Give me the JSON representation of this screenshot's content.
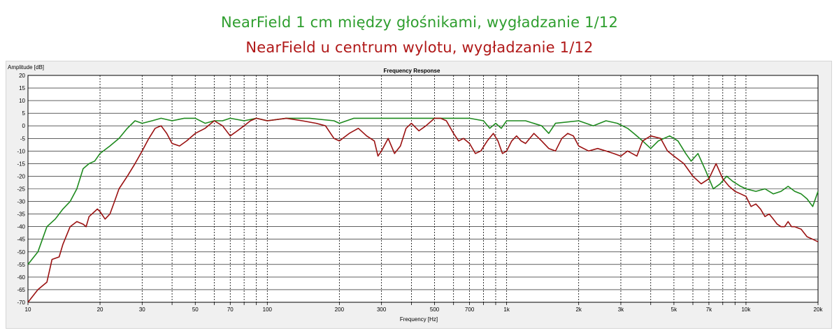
{
  "captions": {
    "green": "NearField 1 cm między głośnikami, wygładzanie 1/12",
    "red": "NearField u centrum wylotu, wygładzanie 1/12",
    "green_color": "#2e9e2e",
    "red_color": "#b01818"
  },
  "chart_data": {
    "type": "line",
    "title": "Frequency Response",
    "xlabel": "Frequency [Hz]",
    "ylabel": "Amplitude [dB]",
    "xscale": "log",
    "xlim": [
      10,
      20000
    ],
    "ylim": [
      -70,
      20
    ],
    "grid": true,
    "x_ticks": [
      {
        "value": 10,
        "label": "10"
      },
      {
        "value": 20,
        "label": "20"
      },
      {
        "value": 30,
        "label": "30"
      },
      {
        "value": 40,
        "label": ""
      },
      {
        "value": 50,
        "label": "50"
      },
      {
        "value": 60,
        "label": ""
      },
      {
        "value": 70,
        "label": "70"
      },
      {
        "value": 80,
        "label": ""
      },
      {
        "value": 90,
        "label": ""
      },
      {
        "value": 100,
        "label": "100"
      },
      {
        "value": 200,
        "label": "200"
      },
      {
        "value": 300,
        "label": "300"
      },
      {
        "value": 400,
        "label": ""
      },
      {
        "value": 500,
        "label": "500"
      },
      {
        "value": 600,
        "label": ""
      },
      {
        "value": 700,
        "label": "700"
      },
      {
        "value": 800,
        "label": ""
      },
      {
        "value": 900,
        "label": ""
      },
      {
        "value": 1000,
        "label": "1k"
      },
      {
        "value": 2000,
        "label": "2k"
      },
      {
        "value": 3000,
        "label": "3k"
      },
      {
        "value": 4000,
        "label": ""
      },
      {
        "value": 5000,
        "label": "5k"
      },
      {
        "value": 6000,
        "label": ""
      },
      {
        "value": 7000,
        "label": "7k"
      },
      {
        "value": 8000,
        "label": ""
      },
      {
        "value": 9000,
        "label": ""
      },
      {
        "value": 10000,
        "label": "10k"
      },
      {
        "value": 20000,
        "label": "20k"
      }
    ],
    "y_ticks": [
      20,
      15,
      10,
      5,
      0,
      -5,
      -10,
      -15,
      -20,
      -25,
      -30,
      -35,
      -40,
      -45,
      -50,
      -55,
      -60,
      -65,
      -70
    ],
    "series": [
      {
        "color": "#1e8a1e",
        "points": [
          [
            10,
            -55
          ],
          [
            11,
            -50
          ],
          [
            12,
            -40
          ],
          [
            13,
            -37
          ],
          [
            14,
            -33
          ],
          [
            15,
            -30
          ],
          [
            16,
            -25
          ],
          [
            17,
            -17
          ],
          [
            18,
            -15
          ],
          [
            19,
            -14
          ],
          [
            20,
            -11
          ],
          [
            22,
            -8
          ],
          [
            24,
            -5
          ],
          [
            26,
            -1
          ],
          [
            28,
            2
          ],
          [
            30,
            1
          ],
          [
            33,
            2
          ],
          [
            36,
            3
          ],
          [
            40,
            2
          ],
          [
            45,
            3
          ],
          [
            50,
            3
          ],
          [
            55,
            1
          ],
          [
            60,
            2
          ],
          [
            65,
            2
          ],
          [
            70,
            3
          ],
          [
            80,
            2
          ],
          [
            90,
            3
          ],
          [
            100,
            2
          ],
          [
            120,
            3
          ],
          [
            150,
            3
          ],
          [
            190,
            2
          ],
          [
            200,
            1
          ],
          [
            230,
            3
          ],
          [
            300,
            3
          ],
          [
            400,
            3
          ],
          [
            500,
            3
          ],
          [
            600,
            3
          ],
          [
            700,
            3
          ],
          [
            800,
            2
          ],
          [
            850,
            -1
          ],
          [
            900,
            1
          ],
          [
            950,
            -1
          ],
          [
            1000,
            2
          ],
          [
            1200,
            2
          ],
          [
            1400,
            0
          ],
          [
            1500,
            -3
          ],
          [
            1600,
            1
          ],
          [
            2000,
            2
          ],
          [
            2300,
            0
          ],
          [
            2600,
            2
          ],
          [
            2900,
            1
          ],
          [
            3200,
            -1
          ],
          [
            3400,
            -3
          ],
          [
            3700,
            -6
          ],
          [
            4000,
            -9
          ],
          [
            4300,
            -6
          ],
          [
            4800,
            -4
          ],
          [
            5200,
            -6
          ],
          [
            5600,
            -11
          ],
          [
            5900,
            -14
          ],
          [
            6300,
            -11
          ],
          [
            6800,
            -18
          ],
          [
            7300,
            -25
          ],
          [
            7800,
            -23
          ],
          [
            8300,
            -20
          ],
          [
            8800,
            -22
          ],
          [
            9500,
            -24
          ],
          [
            10000,
            -25
          ],
          [
            11000,
            -26
          ],
          [
            12000,
            -25
          ],
          [
            13000,
            -27
          ],
          [
            14000,
            -26
          ],
          [
            15000,
            -24
          ],
          [
            16000,
            -26
          ],
          [
            17000,
            -27
          ],
          [
            18000,
            -29
          ],
          [
            19000,
            -32
          ],
          [
            20000,
            -26
          ]
        ]
      },
      {
        "color": "#9a1111",
        "points": [
          [
            10,
            -70
          ],
          [
            11,
            -65
          ],
          [
            12,
            -62
          ],
          [
            12.6,
            -53
          ],
          [
            13.5,
            -52
          ],
          [
            14,
            -47
          ],
          [
            15,
            -40
          ],
          [
            16,
            -38
          ],
          [
            17,
            -39
          ],
          [
            17.5,
            -40
          ],
          [
            18,
            -36
          ],
          [
            19,
            -34
          ],
          [
            19.5,
            -33
          ],
          [
            20,
            -34
          ],
          [
            21,
            -37
          ],
          [
            22,
            -35
          ],
          [
            23,
            -30
          ],
          [
            24,
            -25
          ],
          [
            26,
            -20
          ],
          [
            28,
            -15
          ],
          [
            30,
            -10
          ],
          [
            32,
            -5
          ],
          [
            34,
            -1
          ],
          [
            36,
            0
          ],
          [
            38,
            -3
          ],
          [
            40,
            -7
          ],
          [
            43,
            -8
          ],
          [
            46,
            -6
          ],
          [
            50,
            -3
          ],
          [
            55,
            -1
          ],
          [
            60,
            2
          ],
          [
            65,
            0
          ],
          [
            70,
            -4
          ],
          [
            75,
            -2
          ],
          [
            80,
            0
          ],
          [
            85,
            2
          ],
          [
            90,
            3
          ],
          [
            100,
            2
          ],
          [
            120,
            3
          ],
          [
            140,
            2
          ],
          [
            160,
            1
          ],
          [
            175,
            0
          ],
          [
            190,
            -5
          ],
          [
            200,
            -6
          ],
          [
            220,
            -3
          ],
          [
            240,
            -1
          ],
          [
            260,
            -4
          ],
          [
            280,
            -6
          ],
          [
            290,
            -12
          ],
          [
            300,
            -10
          ],
          [
            320,
            -5
          ],
          [
            340,
            -11
          ],
          [
            360,
            -8
          ],
          [
            380,
            -1
          ],
          [
            400,
            1
          ],
          [
            430,
            -2
          ],
          [
            460,
            0
          ],
          [
            500,
            3
          ],
          [
            530,
            3
          ],
          [
            560,
            2
          ],
          [
            600,
            -3
          ],
          [
            630,
            -6
          ],
          [
            660,
            -5
          ],
          [
            700,
            -7
          ],
          [
            740,
            -11
          ],
          [
            780,
            -10
          ],
          [
            830,
            -6
          ],
          [
            880,
            -3
          ],
          [
            920,
            -6
          ],
          [
            960,
            -11
          ],
          [
            1000,
            -10
          ],
          [
            1050,
            -6
          ],
          [
            1100,
            -4
          ],
          [
            1150,
            -6
          ],
          [
            1200,
            -7
          ],
          [
            1300,
            -3
          ],
          [
            1400,
            -6
          ],
          [
            1500,
            -9
          ],
          [
            1600,
            -10
          ],
          [
            1700,
            -5
          ],
          [
            1800,
            -3
          ],
          [
            1900,
            -4
          ],
          [
            2000,
            -8
          ],
          [
            2200,
            -10
          ],
          [
            2400,
            -9
          ],
          [
            2600,
            -10
          ],
          [
            2800,
            -11
          ],
          [
            3000,
            -12
          ],
          [
            3200,
            -10
          ],
          [
            3500,
            -12
          ],
          [
            3700,
            -6
          ],
          [
            4000,
            -4
          ],
          [
            4400,
            -5
          ],
          [
            4700,
            -10
          ],
          [
            5000,
            -12
          ],
          [
            5500,
            -15
          ],
          [
            6000,
            -20
          ],
          [
            6500,
            -23
          ],
          [
            7000,
            -21
          ],
          [
            7500,
            -15
          ],
          [
            8000,
            -21
          ],
          [
            8500,
            -24
          ],
          [
            9000,
            -26
          ],
          [
            9500,
            -27
          ],
          [
            10000,
            -28
          ],
          [
            10500,
            -32
          ],
          [
            11000,
            -31
          ],
          [
            11500,
            -33
          ],
          [
            12000,
            -36
          ],
          [
            12500,
            -35
          ],
          [
            13000,
            -37
          ],
          [
            13500,
            -39
          ],
          [
            14000,
            -40
          ],
          [
            14500,
            -40
          ],
          [
            15000,
            -38
          ],
          [
            15500,
            -40
          ],
          [
            16000,
            -40
          ],
          [
            17000,
            -41
          ],
          [
            18000,
            -44
          ],
          [
            19000,
            -45
          ],
          [
            20000,
            -46
          ]
        ]
      }
    ]
  }
}
